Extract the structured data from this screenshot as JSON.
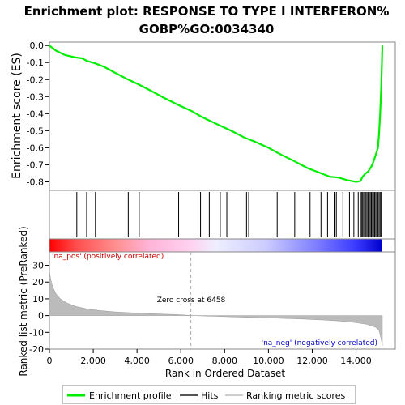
{
  "chart_data": {
    "type": "line",
    "title_line1": "Enrichment plot: RESPONSE TO TYPE I INTERFERON%",
    "title_line2": "GOBP%GO:0034340",
    "top_panel": {
      "ylabel": "Enrichment score (ES)",
      "ylim": [
        -0.85,
        0.02
      ],
      "yticks": [
        "0.0",
        "-0.1",
        "-0.2",
        "-0.3",
        "-0.4",
        "-0.5",
        "-0.6",
        "-0.7",
        "-0.8"
      ],
      "ytick_values": [
        0.0,
        -0.1,
        -0.2,
        -0.3,
        -0.4,
        -0.5,
        -0.6,
        -0.7,
        -0.8
      ],
      "line_color": "#00ee00",
      "es_curve": [
        [
          0,
          0.0
        ],
        [
          300,
          -0.03
        ],
        [
          700,
          -0.055
        ],
        [
          1200,
          -0.07
        ],
        [
          1500,
          -0.075
        ],
        [
          1700,
          -0.09
        ],
        [
          2100,
          -0.105
        ],
        [
          2500,
          -0.125
        ],
        [
          3000,
          -0.16
        ],
        [
          3600,
          -0.2
        ],
        [
          4100,
          -0.23
        ],
        [
          4700,
          -0.27
        ],
        [
          5200,
          -0.305
        ],
        [
          5900,
          -0.35
        ],
        [
          6500,
          -0.385
        ],
        [
          6900,
          -0.415
        ],
        [
          7300,
          -0.44
        ],
        [
          7800,
          -0.47
        ],
        [
          8300,
          -0.5
        ],
        [
          8900,
          -0.54
        ],
        [
          9400,
          -0.565
        ],
        [
          10000,
          -0.6
        ],
        [
          10500,
          -0.635
        ],
        [
          11200,
          -0.68
        ],
        [
          11800,
          -0.72
        ],
        [
          12300,
          -0.745
        ],
        [
          12800,
          -0.77
        ],
        [
          13200,
          -0.775
        ],
        [
          13600,
          -0.79
        ],
        [
          14000,
          -0.8
        ],
        [
          14200,
          -0.795
        ],
        [
          14300,
          -0.77
        ],
        [
          14400,
          -0.755
        ],
        [
          14550,
          -0.74
        ],
        [
          14700,
          -0.71
        ],
        [
          14800,
          -0.68
        ],
        [
          14900,
          -0.64
        ],
        [
          15000,
          -0.6
        ],
        [
          15050,
          -0.52
        ],
        [
          15100,
          -0.4
        ],
        [
          15150,
          -0.25
        ],
        [
          15180,
          -0.1
        ],
        [
          15200,
          0.0
        ]
      ]
    },
    "hits_panel": {
      "hit_ranks": [
        1250,
        1700,
        2100,
        3600,
        4100,
        5900,
        6900,
        7300,
        7800,
        8100,
        9000,
        9100,
        10400,
        11200,
        11900,
        12400,
        12700,
        13000,
        13100,
        13400,
        13700,
        13900,
        14100,
        14200,
        14250,
        14300,
        14350,
        14400,
        14450,
        14500,
        14550,
        14600,
        14650,
        14700,
        14750,
        14800,
        14850,
        14900,
        14950,
        15000,
        15050,
        15100,
        15150
      ]
    },
    "bottom_panel": {
      "ylabel": "Ranked list metric (PreRanked)",
      "xlabel": "Rank in Ordered Dataset",
      "ylim": [
        -20,
        38
      ],
      "yticks": [
        "30",
        "20",
        "10",
        "0",
        "-10",
        "-20"
      ],
      "ytick_values": [
        30,
        20,
        10,
        0,
        -10,
        -20
      ],
      "xlim": [
        0,
        15200
      ],
      "xticks": [
        "0",
        "2,000",
        "4,000",
        "6,000",
        "8,000",
        "10,000",
        "12,000",
        "14,000"
      ],
      "xtick_values": [
        0,
        2000,
        4000,
        6000,
        8000,
        10000,
        12000,
        14000
      ],
      "metric_curve": [
        [
          0,
          27
        ],
        [
          50,
          22
        ],
        [
          150,
          17
        ],
        [
          300,
          13
        ],
        [
          500,
          10
        ],
        [
          800,
          7.5
        ],
        [
          1200,
          5.5
        ],
        [
          1700,
          4
        ],
        [
          2300,
          3
        ],
        [
          3000,
          2.2
        ],
        [
          4000,
          1.5
        ],
        [
          5000,
          1.0
        ],
        [
          6000,
          0.5
        ],
        [
          6458,
          0.0
        ],
        [
          7500,
          -0.4
        ],
        [
          8500,
          -0.8
        ],
        [
          9500,
          -1.2
        ],
        [
          10500,
          -1.6
        ],
        [
          11500,
          -2.0
        ],
        [
          12500,
          -2.6
        ],
        [
          13300,
          -3.3
        ],
        [
          14000,
          -4.2
        ],
        [
          14500,
          -5.2
        ],
        [
          14900,
          -7
        ],
        [
          15050,
          -9
        ],
        [
          15150,
          -14
        ],
        [
          15200,
          -18
        ]
      ],
      "zero_cross_label": "Zero cross at 6458",
      "zero_cross_rank": 6458,
      "pos_label": "'na_pos' (positively correlated)",
      "neg_label": "'na_neg' (negatively correlated)"
    },
    "legend": {
      "items": [
        {
          "label": "Enrichment profile",
          "color": "#00ee00"
        },
        {
          "label": "Hits",
          "color": "#555555"
        },
        {
          "label": "Ranking metric scores",
          "color": "#cccccc"
        }
      ]
    }
  }
}
